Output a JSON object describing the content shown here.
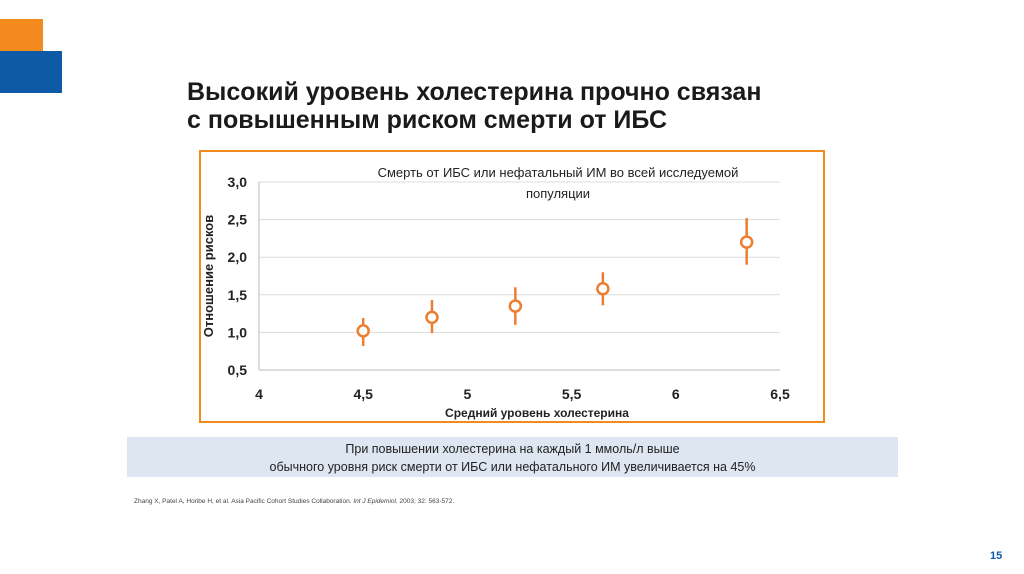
{
  "slide": {
    "title_line1": "Высокий уровень холестерина прочно связан",
    "title_line2": "с повышенным риском смерти от ИБС",
    "note_line1": "При повышении холестерина на каждый 1 ммоль/л выше",
    "note_line2": "обычного уровня риск смерти от ИБС или нефатального ИМ увеличивается на 45%",
    "reference_authors": "Zhang X, Patel A, Horibe H, et al. Asia Pacific Cohort Studies Collaboration. ",
    "reference_journal": "Int J Epidemiol.",
    "reference_tail": " 2003; 32: 563-572.",
    "page_number": "15"
  },
  "chart_data": {
    "type": "scatter",
    "title_line1": "Смерть от ИБС или нефатальный ИМ во всей исследуемой",
    "title_line2": "популяции",
    "xlabel": "Средний уровень холестерина",
    "ylabel": "Отношение рисков",
    "xlim": [
      4,
      6.5
    ],
    "ylim": [
      0.5,
      3.0
    ],
    "xticks": [
      "4",
      "4,5",
      "5",
      "5,5",
      "6",
      "6,5"
    ],
    "yticks": [
      "0,5",
      "1,0",
      "1,5",
      "2,0",
      "2,5",
      "3,0"
    ],
    "grid": true,
    "color": "#ed7d31",
    "points": [
      {
        "x": 4.5,
        "y": 1.02,
        "low": 0.82,
        "high": 1.19
      },
      {
        "x": 4.83,
        "y": 1.2,
        "low": 0.99,
        "high": 1.43
      },
      {
        "x": 5.23,
        "y": 1.35,
        "low": 1.1,
        "high": 1.6
      },
      {
        "x": 5.65,
        "y": 1.58,
        "low": 1.36,
        "high": 1.8
      },
      {
        "x": 6.34,
        "y": 2.2,
        "low": 1.9,
        "high": 2.52
      }
    ]
  }
}
